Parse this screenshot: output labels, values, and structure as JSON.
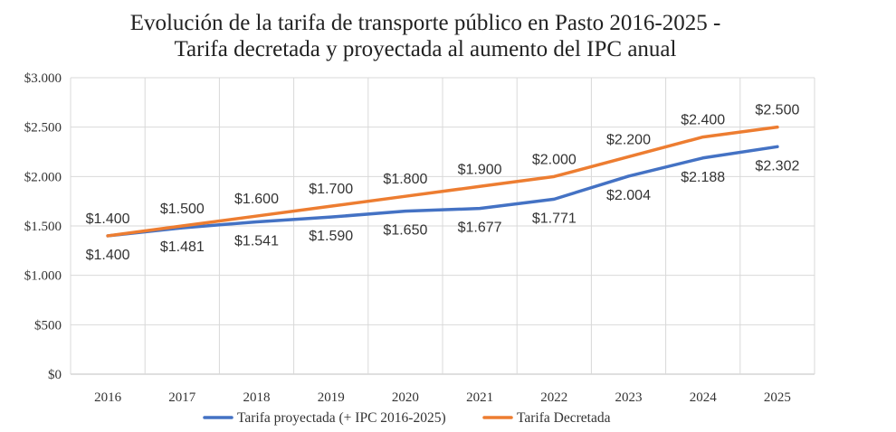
{
  "chart_data": {
    "type": "line",
    "title": "Evolución de la tarifa de transporte público en Pasto 2016-2025 -",
    "subtitle": "Tarifa decretada y proyectada al aumento del IPC anual",
    "categories": [
      "2016",
      "2017",
      "2018",
      "2019",
      "2020",
      "2021",
      "2022",
      "2023",
      "2024",
      "2025"
    ],
    "ylim": [
      0,
      3000
    ],
    "yticks": [
      0,
      500,
      1000,
      1500,
      2000,
      2500,
      3000
    ],
    "ytick_labels": [
      "$0",
      "$500",
      "$1.000",
      "$1.500",
      "$2.000",
      "$2.500",
      "$3.000"
    ],
    "grid": true,
    "legend": "bottom",
    "series": [
      {
        "name": "Tarifa proyectada (+ IPC 2016-2025)",
        "color": "#4472c4",
        "values": [
          1400,
          1481,
          1541,
          1590,
          1650,
          1677,
          1771,
          2004,
          2188,
          2302
        ],
        "labels": [
          "$1.400",
          "$1.481",
          "$1.541",
          "$1.590",
          "$1.650",
          "$1.677",
          "$1.771",
          "$2.004",
          "$2.188",
          "$2.302"
        ]
      },
      {
        "name": "Tarifa Decretada",
        "color": "#ed7d31",
        "values": [
          1400,
          1500,
          1600,
          1700,
          1800,
          1900,
          2000,
          2200,
          2400,
          2500
        ],
        "labels": [
          "$1.400",
          "$1.500",
          "$1.600",
          "$1.700",
          "$1.800",
          "$1.900",
          "$2.000",
          "$2.200",
          "$2.400",
          "$2.500"
        ]
      }
    ]
  }
}
